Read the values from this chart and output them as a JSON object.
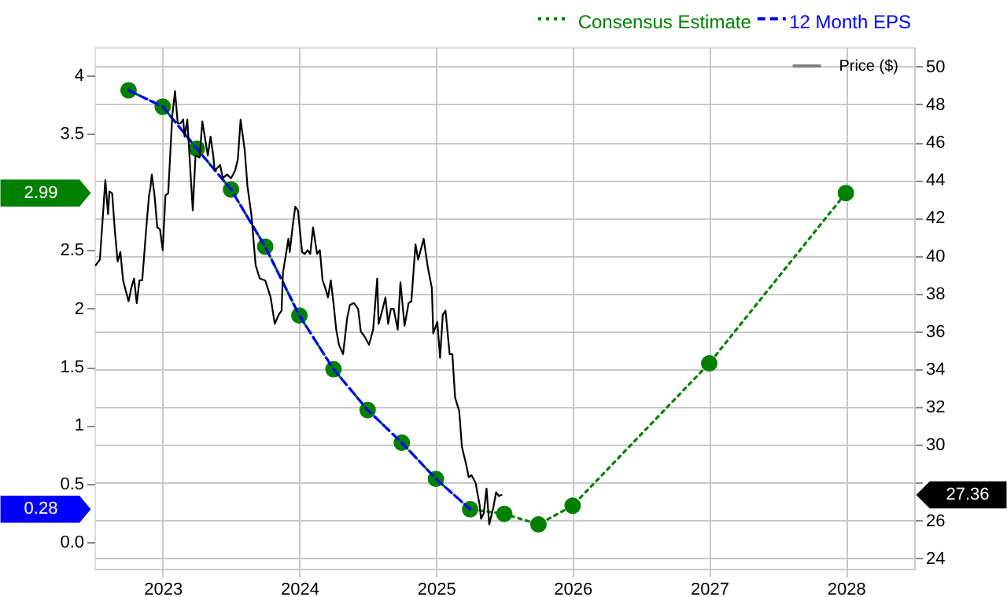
{
  "chart_data": {
    "type": "line",
    "xlim": [
      2022.5,
      2028.5
    ],
    "xticks": [
      2023,
      2024,
      2025,
      2026,
      2027,
      2028
    ],
    "ylim": [
      -0.23,
      4.24
    ],
    "yticks": [
      {
        "value": 0,
        "label": "0.0"
      },
      0.5,
      1,
      1.5,
      2,
      2.5,
      3.5,
      4
    ],
    "y2lim": [
      23.46,
      51.03
    ],
    "y2ticks": [
      24,
      26,
      {
        "value": 28,
        "label": null
      },
      30,
      32,
      34,
      36,
      38,
      40,
      42,
      44,
      46,
      48,
      50
    ],
    "grid": true,
    "legend": "top right",
    "series": [
      {
        "name": "Consensus Estimate",
        "color": "#008000",
        "line_style": "dotted",
        "marker": "circle",
        "x": [
          2022.75,
          2023,
          2023.25,
          2023.5,
          2023.75,
          2024,
          2024.25,
          2024.5,
          2024.75,
          2025,
          2025.25,
          2025.5,
          2025.75,
          2026,
          2027,
          2028
        ],
        "values": [
          3.87,
          3.73,
          3.37,
          3.02,
          2.53,
          1.94,
          1.48,
          1.13,
          0.85,
          0.54,
          0.28,
          0.24,
          0.15,
          0.31,
          1.53,
          2.99
        ]
      },
      {
        "name": "12 Month EPS",
        "color": "#0000ff",
        "line_style": "dashed",
        "marker": "none",
        "x": [
          2022.75,
          2023,
          2023.25,
          2023.5,
          2023.75,
          2024,
          2024.25,
          2024.5,
          2024.75,
          2025,
          2025.25
        ],
        "values": [
          3.87,
          3.73,
          3.37,
          3.02,
          2.53,
          1.94,
          1.48,
          1.13,
          0.85,
          0.54,
          0.28
        ]
      },
      {
        "name": "Price ($)",
        "color": "#000000",
        "line_style": "solid",
        "marker": "none",
        "axis": "y2",
        "x": [
          2022.51,
          2022.54,
          2022.58,
          2022.6,
          2022.61,
          2022.63,
          2022.65,
          2022.67,
          2022.69,
          2022.71,
          2022.75,
          2022.77,
          2022.79,
          2022.81,
          2022.83,
          2022.85,
          2022.88,
          2022.9,
          2022.91,
          2022.92,
          2022.94,
          2022.96,
          2022.98,
          2023.0,
          2023.02,
          2023.04,
          2023.07,
          2023.09,
          2023.11,
          2023.13,
          2023.15,
          2023.16,
          2023.18,
          2023.2,
          2023.22,
          2023.24,
          2023.27,
          2023.29,
          2023.31,
          2023.33,
          2023.35,
          2023.37,
          2023.38,
          2023.42,
          2023.44,
          2023.47,
          2023.5,
          2023.53,
          2023.55,
          2023.57,
          2023.6,
          2023.62,
          2023.65,
          2023.68,
          2023.71,
          2023.75,
          2023.79,
          2023.82,
          2023.85,
          2023.87,
          2023.88,
          2023.92,
          2023.93,
          2023.95,
          2023.97,
          2023.99,
          2024.02,
          2024.04,
          2024.06,
          2024.08,
          2024.1,
          2024.13,
          2024.15,
          2024.17,
          2024.19,
          2024.21,
          2024.23,
          2024.25,
          2024.27,
          2024.29,
          2024.32,
          2024.35,
          2024.37,
          2024.4,
          2024.43,
          2024.45,
          2024.48,
          2024.51,
          2024.54,
          2024.57,
          2024.58,
          2024.61,
          2024.63,
          2024.65,
          2024.67,
          2024.69,
          2024.72,
          2024.74,
          2024.77,
          2024.8,
          2024.82,
          2024.85,
          2024.87,
          2024.91,
          2024.94,
          2024.97,
          2024.98,
          2025.01,
          2025.03,
          2025.05,
          2025.07,
          2025.1,
          2025.12,
          2025.14,
          2025.17,
          2025.19,
          2025.22,
          2025.24,
          2025.26,
          2025.29,
          2025.32,
          2025.33,
          2025.35,
          2025.37,
          2025.39,
          2025.42,
          2025.44,
          2025.46,
          2025.48
        ],
        "values": [
          39.5,
          39.8,
          44.0,
          42.2,
          43.4,
          43.3,
          41.3,
          39.7,
          40.2,
          38.7,
          37.6,
          38.3,
          38.8,
          37.5,
          38.7,
          38.7,
          41.5,
          43.2,
          43.6,
          44.3,
          43.2,
          41.5,
          41.4,
          40.3,
          43.2,
          43.3,
          47.4,
          48.7,
          47.0,
          47.0,
          47.2,
          46.3,
          47.2,
          44.8,
          42.4,
          45.3,
          45.2,
          47.1,
          46.2,
          45.3,
          46.3,
          45.3,
          44.5,
          44.8,
          44.1,
          44.3,
          44.1,
          44.5,
          45.1,
          47.2,
          45.6,
          43.7,
          42.1,
          39.5,
          38.8,
          38.7,
          37.8,
          36.4,
          36.9,
          37.1,
          39.1,
          40.9,
          40.2,
          41.5,
          42.6,
          42.4,
          40.2,
          40.1,
          40.3,
          40.1,
          41.5,
          40.1,
          40.3,
          38.7,
          38.3,
          37.8,
          38.7,
          37.5,
          36.1,
          35.3,
          34.8,
          36.7,
          37.4,
          37.5,
          37.2,
          36.0,
          35.7,
          35.3,
          36.1,
          38.8,
          36.4,
          37.2,
          37.8,
          36.4,
          37.2,
          37.2,
          36.1,
          38.6,
          36.3,
          37.5,
          37.6,
          40.6,
          39.8,
          40.9,
          39.4,
          38.3,
          35.9,
          36.5,
          34.6,
          36.9,
          37.1,
          34.8,
          34.8,
          32.5,
          31.8,
          29.9,
          29.0,
          28.3,
          28.4,
          28.0,
          26.8,
          26.1,
          26.4,
          27.7,
          25.8,
          26.7,
          27.5,
          27.3,
          27.36
        ]
      }
    ],
    "annotations": [
      "2.99",
      "0.28",
      "27.36"
    ]
  }
}
